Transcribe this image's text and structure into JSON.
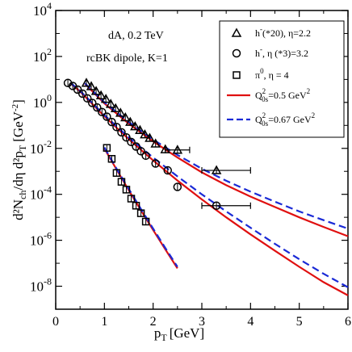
{
  "chart_data": {
    "type": "scatter",
    "xlabel": "p",
    "xlabel_sub": "T",
    "xlabel_unit": "[GeV]",
    "ylabel": "d²N",
    "ylabel_sub": "ch",
    "ylabel_mid": "/dη d²p",
    "ylabel_sub2": "T",
    "ylabel_unit": "[GeV",
    "ylabel_unit_sup": "-2",
    "ylabel_unit_close": "]",
    "xlim": [
      0,
      6
    ],
    "ylim_log10": [
      -9,
      4
    ],
    "y_scale": "log",
    "x_ticks": [
      0,
      1,
      2,
      3,
      4,
      5,
      6
    ],
    "y_tick_exponents": [
      -8,
      -6,
      -4,
      -2,
      0,
      2,
      4
    ],
    "grid": false,
    "legend_position": "top-right",
    "annotations": [
      "dA, 0.2 TeV",
      "rcBK dipole, K=1"
    ],
    "legend": [
      {
        "marker": "triangle",
        "label": "h",
        "sup": "-",
        "rest": "(*20), η=2.2"
      },
      {
        "marker": "circle",
        "label": "h",
        "sup": "-",
        "rest": ", η (*3)=3.2"
      },
      {
        "marker": "square",
        "label": "π",
        "sup": "0",
        "rest": ", η = 4"
      },
      {
        "line": "solid",
        "color": "#e01010",
        "label": "Q",
        "sup": "2",
        "sub": "0s",
        "rest": "=0.5 GeV",
        "rest_sup": "2"
      },
      {
        "line": "dashed",
        "color": "#1a2ad6",
        "label": "Q",
        "sup": "2",
        "sub": "0s",
        "rest": "=0.67 GeV",
        "rest_sup": "2"
      }
    ],
    "series": [
      {
        "name": "h⁻ (*20), η=2.2",
        "marker": "triangle",
        "points": [
          [
            0.63,
            7.0
          ],
          [
            0.73,
            5.0
          ],
          [
            0.83,
            3.1
          ],
          [
            0.93,
            2.0
          ],
          [
            1.03,
            1.4
          ],
          [
            1.13,
            0.85
          ],
          [
            1.23,
            0.55
          ],
          [
            1.33,
            0.35
          ],
          [
            1.43,
            0.22
          ],
          [
            1.53,
            0.14
          ],
          [
            1.63,
            0.09
          ],
          [
            1.73,
            0.062
          ],
          [
            1.83,
            0.04
          ],
          [
            1.93,
            0.028
          ],
          [
            2.05,
            0.016
          ],
          [
            2.25,
            0.009
          ],
          [
            2.5,
            0.0085
          ],
          [
            3.3,
            0.0011
          ]
        ],
        "xerr": [
          [
            0,
            0
          ],
          [
            0,
            0
          ],
          [
            0,
            0
          ],
          [
            0,
            0
          ],
          [
            0,
            0
          ],
          [
            0,
            0
          ],
          [
            0,
            0
          ],
          [
            0,
            0
          ],
          [
            0,
            0
          ],
          [
            0,
            0
          ],
          [
            0,
            0
          ],
          [
            0,
            0
          ],
          [
            0,
            0
          ],
          [
            0,
            0
          ],
          [
            0,
            0
          ],
          [
            0,
            0
          ],
          [
            0.25,
            0.25
          ],
          [
            0.3,
            0.7
          ]
        ]
      },
      {
        "name": "h⁻, η (*3)=3.2",
        "marker": "circle",
        "points": [
          [
            0.25,
            7.0
          ],
          [
            0.35,
            5.2
          ],
          [
            0.45,
            3.6
          ],
          [
            0.55,
            2.4
          ],
          [
            0.65,
            1.5
          ],
          [
            0.75,
            0.95
          ],
          [
            0.85,
            0.6
          ],
          [
            0.95,
            0.38
          ],
          [
            1.05,
            0.24
          ],
          [
            1.15,
            0.14
          ],
          [
            1.25,
            0.085
          ],
          [
            1.35,
            0.05
          ],
          [
            1.45,
            0.03
          ],
          [
            1.55,
            0.019
          ],
          [
            1.65,
            0.012
          ],
          [
            1.75,
            0.0075
          ],
          [
            1.85,
            0.0048
          ],
          [
            2.05,
            0.0022
          ],
          [
            2.3,
            0.0011
          ],
          [
            2.5,
            0.00021
          ],
          [
            3.3,
            3.2e-05
          ]
        ],
        "xerr": [
          [
            0,
            0
          ],
          [
            0,
            0
          ],
          [
            0,
            0
          ],
          [
            0,
            0
          ],
          [
            0,
            0
          ],
          [
            0,
            0
          ],
          [
            0,
            0
          ],
          [
            0,
            0
          ],
          [
            0,
            0
          ],
          [
            0,
            0
          ],
          [
            0,
            0
          ],
          [
            0,
            0
          ],
          [
            0,
            0
          ],
          [
            0,
            0
          ],
          [
            0,
            0
          ],
          [
            0,
            0
          ],
          [
            0,
            0
          ],
          [
            0,
            0
          ],
          [
            0,
            0
          ],
          [
            0,
            0
          ],
          [
            0.3,
            0.7
          ]
        ]
      },
      {
        "name": "π⁰, η = 4",
        "marker": "square",
        "points": [
          [
            1.05,
            0.0105
          ],
          [
            1.15,
            0.0035
          ],
          [
            1.25,
            0.00085
          ],
          [
            1.35,
            0.00035
          ],
          [
            1.45,
            0.00016
          ],
          [
            1.55,
            6.5e-05
          ],
          [
            1.65,
            3.2e-05
          ],
          [
            1.75,
            1.5e-05
          ],
          [
            1.85,
            6.5e-06
          ]
        ]
      }
    ],
    "curves": [
      {
        "name": "Q²0s=0.5 GeV² (h⁻ η=2.2)",
        "style": "solid",
        "color": "#e01010",
        "x": [
          0.6,
          1.0,
          1.5,
          2.0,
          2.5,
          3.0,
          3.5,
          4.0,
          4.5,
          5.0,
          5.5,
          6.0
        ],
        "y": [
          6.5,
          0.9,
          0.12,
          0.02,
          0.004,
          0.0009,
          0.00025,
          8e-05,
          2.8e-05,
          1e-05,
          3.8e-06,
          1.5e-06
        ]
      },
      {
        "name": "Q²0s=0.67 GeV² (h⁻ η=2.2)",
        "style": "dashed",
        "color": "#1a2ad6",
        "x": [
          0.6,
          1.0,
          1.5,
          2.0,
          2.5,
          3.0,
          3.5,
          4.0,
          4.5,
          5.0,
          5.5,
          6.0
        ],
        "y": [
          6.8,
          1.0,
          0.14,
          0.024,
          0.0052,
          0.0013,
          0.00039,
          0.00013,
          4.8e-05,
          1.8e-05,
          7.5e-06,
          3.2e-06
        ]
      },
      {
        "name": "Q²0s=0.5 GeV² (h⁻ η=3.2)",
        "style": "solid",
        "color": "#e01010",
        "x": [
          0.3,
          0.5,
          1.0,
          1.5,
          2.0,
          2.5,
          3.0,
          3.5,
          4.0,
          4.5,
          5.0,
          5.5,
          6.0
        ],
        "y": [
          7.0,
          3.0,
          0.25,
          0.025,
          0.003,
          0.0004,
          6e-05,
          1e-05,
          1.8e-06,
          3.5e-07,
          7e-08,
          1.5e-08,
          4e-09
        ]
      },
      {
        "name": "Q²0s=0.67 GeV² (h⁻ η=3.2)",
        "style": "dashed",
        "color": "#1a2ad6",
        "x": [
          0.3,
          0.5,
          1.0,
          1.5,
          2.0,
          2.5,
          3.0,
          3.5,
          4.0,
          4.5,
          5.0,
          5.5,
          6.0
        ],
        "y": [
          7.2,
          3.2,
          0.28,
          0.03,
          0.004,
          0.0006,
          0.0001,
          1.8e-05,
          3.5e-06,
          7e-07,
          1.5e-07,
          3.5e-08,
          9e-09
        ]
      },
      {
        "name": "Q²0s=0.5 GeV² (π⁰ η=4)",
        "style": "solid",
        "color": "#e01010",
        "x": [
          1.0,
          1.25,
          1.5,
          1.75,
          2.0,
          2.25,
          2.5
        ],
        "y": [
          0.01,
          0.0012,
          0.00015,
          2e-05,
          2.8e-06,
          4e-07,
          6e-08
        ]
      },
      {
        "name": "Q²0s=0.67 GeV² (π⁰ η=4)",
        "style": "dashed",
        "color": "#1a2ad6",
        "x": [
          1.0,
          1.25,
          1.5,
          1.75,
          2.0,
          2.25,
          2.5
        ],
        "y": [
          0.011,
          0.0013,
          0.00017,
          2.3e-05,
          3.2e-06,
          4.6e-07,
          7e-08
        ]
      }
    ]
  }
}
